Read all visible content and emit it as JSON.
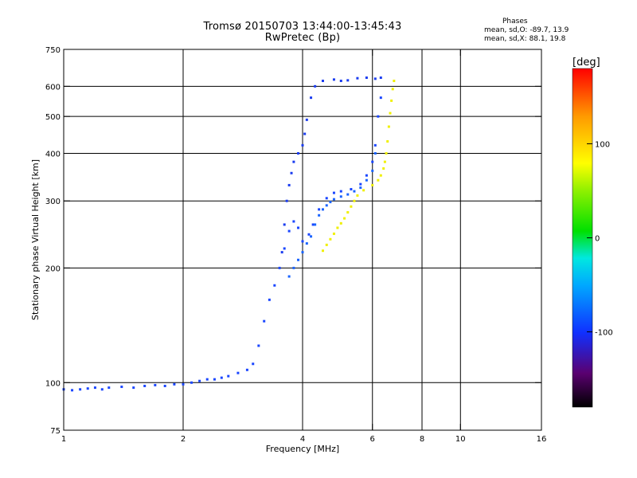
{
  "title_line1": "Tromsø 20150703 13:44:00-13:45:43",
  "title_line2": "RwPretec (Bp)",
  "phases": {
    "heading": "Phases",
    "o_line": "mean, sd,O: -89.7, 13.9",
    "x_line": "mean, sd,X:  88.1, 19.8"
  },
  "chart_data": {
    "type": "scatter",
    "xscale": "log",
    "yscale": "log",
    "xlabel": "Frequency [MHz]",
    "ylabel": "Stationary phase Virtual Height [km]",
    "xlim": [
      1,
      16
    ],
    "ylim": [
      75,
      750
    ],
    "x_ticks": [
      1,
      2,
      4,
      6,
      8,
      10,
      16
    ],
    "x_tick_labels": [
      "1",
      "2",
      "4",
      "6",
      "8",
      "10",
      "16"
    ],
    "x_grid": [
      2,
      4,
      6,
      8,
      10
    ],
    "y_ticks": [
      75,
      100,
      200,
      300,
      400,
      500,
      600,
      750
    ],
    "y_tick_labels": [
      "75",
      "100",
      "200",
      "300",
      "400",
      "500",
      "600",
      "750"
    ],
    "y_grid": [
      100,
      200,
      300,
      400,
      500,
      600
    ],
    "grid": true,
    "colorbar": {
      "label": "[deg]",
      "range": [
        -180,
        180
      ],
      "ticks": [
        100,
        0,
        -100
      ],
      "tick_labels": [
        "100",
        "0",
        "-100"
      ]
    },
    "series": [
      {
        "phase_deg": -95,
        "color": "#1a46ff",
        "points": [
          [
            1.0,
            96
          ],
          [
            1.05,
            95.5
          ],
          [
            1.1,
            96
          ],
          [
            1.15,
            96.5
          ],
          [
            1.2,
            97
          ],
          [
            1.25,
            96
          ],
          [
            1.3,
            97
          ],
          [
            1.4,
            97.5
          ],
          [
            1.5,
            97
          ],
          [
            1.6,
            98
          ],
          [
            1.7,
            98.5
          ],
          [
            1.8,
            98
          ],
          [
            1.9,
            99
          ],
          [
            2.0,
            99
          ],
          [
            2.1,
            100
          ],
          [
            2.2,
            101
          ],
          [
            2.3,
            102
          ],
          [
            2.4,
            102
          ],
          [
            2.5,
            103
          ],
          [
            2.6,
            104
          ],
          [
            2.75,
            106
          ],
          [
            2.9,
            108
          ],
          [
            3.0,
            112
          ],
          [
            3.1,
            125
          ],
          [
            3.2,
            145
          ],
          [
            3.3,
            165
          ],
          [
            3.4,
            180
          ],
          [
            3.5,
            200
          ],
          [
            3.6,
            225
          ],
          [
            3.7,
            250
          ],
          [
            3.8,
            265
          ],
          [
            3.9,
            255
          ],
          [
            4.0,
            235
          ],
          [
            4.15,
            245
          ],
          [
            4.25,
            260
          ],
          [
            4.4,
            285
          ],
          [
            4.6,
            305
          ],
          [
            4.8,
            315
          ],
          [
            5.0,
            318
          ],
          [
            5.3,
            322
          ],
          [
            5.6,
            332
          ],
          [
            5.8,
            350
          ],
          [
            6.0,
            380
          ],
          [
            6.1,
            420
          ],
          [
            6.2,
            500
          ],
          [
            6.3,
            560
          ]
        ]
      },
      {
        "phase_deg": -100,
        "color": "#1a3cf0",
        "points": [
          [
            3.55,
            220
          ],
          [
            3.6,
            260
          ],
          [
            3.65,
            300
          ],
          [
            3.7,
            330
          ],
          [
            3.75,
            355
          ],
          [
            3.8,
            380
          ],
          [
            3.9,
            400
          ],
          [
            4.0,
            420
          ],
          [
            4.05,
            450
          ],
          [
            4.1,
            490
          ],
          [
            4.2,
            560
          ],
          [
            4.3,
            600
          ],
          [
            4.5,
            620
          ],
          [
            4.8,
            625
          ],
          [
            5.0,
            620
          ],
          [
            5.2,
            622
          ],
          [
            5.5,
            630
          ],
          [
            5.8,
            632
          ],
          [
            6.1,
            628
          ],
          [
            6.3,
            632
          ]
        ]
      },
      {
        "phase_deg": -85,
        "color": "#1a64ff",
        "points": [
          [
            3.7,
            190
          ],
          [
            3.8,
            200
          ],
          [
            3.9,
            210
          ],
          [
            4.0,
            220
          ],
          [
            4.1,
            232
          ],
          [
            4.2,
            242
          ],
          [
            4.3,
            260
          ],
          [
            4.4,
            275
          ],
          [
            4.5,
            285
          ],
          [
            4.6,
            292
          ],
          [
            4.7,
            298
          ],
          [
            4.8,
            303
          ],
          [
            5.0,
            308
          ],
          [
            5.2,
            312
          ],
          [
            5.4,
            318
          ],
          [
            5.6,
            325
          ],
          [
            5.8,
            340
          ],
          [
            6.0,
            360
          ],
          [
            6.1,
            400
          ]
        ]
      },
      {
        "phase_deg": 95,
        "color": "#f0f000",
        "points": [
          [
            4.5,
            222
          ],
          [
            4.6,
            230
          ],
          [
            4.7,
            238
          ],
          [
            4.8,
            246
          ],
          [
            4.9,
            255
          ],
          [
            5.0,
            262
          ],
          [
            5.1,
            270
          ],
          [
            5.2,
            280
          ],
          [
            5.3,
            290
          ],
          [
            5.4,
            300
          ],
          [
            5.5,
            310
          ],
          [
            5.7,
            320
          ],
          [
            6.0,
            330
          ],
          [
            6.2,
            340
          ],
          [
            6.3,
            350
          ],
          [
            6.4,
            365
          ],
          [
            6.45,
            380
          ],
          [
            6.5,
            400
          ],
          [
            6.55,
            430
          ],
          [
            6.6,
            470
          ],
          [
            6.65,
            510
          ],
          [
            6.7,
            550
          ],
          [
            6.75,
            590
          ],
          [
            6.8,
            620
          ]
        ]
      }
    ]
  }
}
